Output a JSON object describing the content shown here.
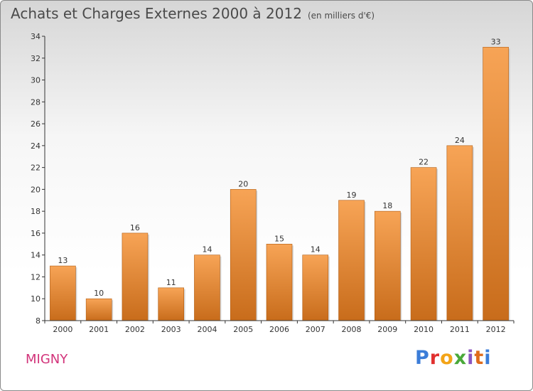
{
  "header": {
    "title": "Achats et Charges Externes 2000 à 2012",
    "subtitle": "(en milliers d'€)"
  },
  "footer": {
    "commune": "MIGNY",
    "logo_letters": [
      "P",
      "r",
      "o",
      "x",
      "i",
      "t",
      "i"
    ]
  },
  "colors": {
    "bar_top": "#f7a456",
    "bar_bottom": "#c86c1b",
    "axis": "#333333",
    "title": "#4a4a4a",
    "commune": "#d2337a"
  },
  "chart_data": {
    "type": "bar",
    "categories": [
      "2000",
      "2001",
      "2002",
      "2003",
      "2004",
      "2005",
      "2006",
      "2007",
      "2008",
      "2009",
      "2010",
      "2011",
      "2012"
    ],
    "values": [
      13,
      10,
      16,
      11,
      14,
      20,
      15,
      14,
      19,
      18,
      22,
      24,
      33
    ],
    "data_labels": [
      "13",
      "10",
      "16",
      "11",
      "14",
      "20",
      "15",
      "14",
      "19",
      "18",
      "22",
      "24",
      "33"
    ],
    "ylim": [
      8,
      34
    ],
    "yticks": [
      8,
      10,
      12,
      14,
      16,
      18,
      20,
      22,
      24,
      26,
      28,
      30,
      32,
      34
    ],
    "title": "Achats et Charges Externes 2000 à 2012",
    "xlabel": "",
    "ylabel": "",
    "grid": false,
    "legend": "none"
  }
}
